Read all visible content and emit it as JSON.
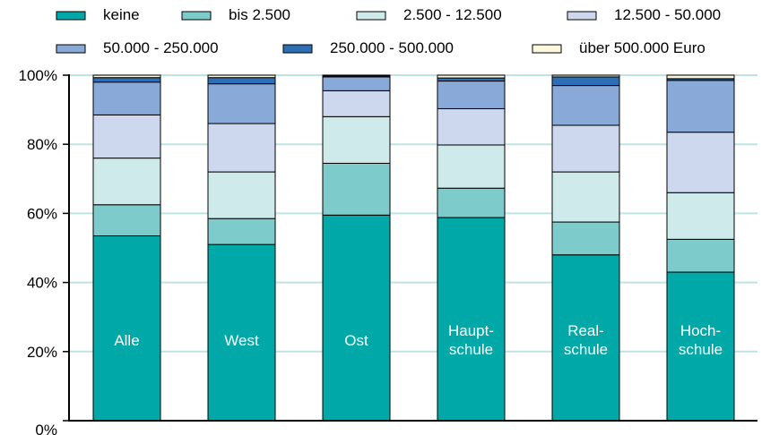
{
  "chart_data": {
    "type": "bar",
    "stacked": true,
    "categories": [
      [
        "Alle"
      ],
      [
        "West"
      ],
      [
        "Ost"
      ],
      [
        "Haupt-",
        "schule"
      ],
      [
        "Real-",
        "schule"
      ],
      [
        "Hoch-",
        "schule"
      ]
    ],
    "y_ticks": [
      "0%",
      "20%",
      "40%",
      "60%",
      "80%",
      "100%"
    ],
    "ylim": [
      0,
      100
    ],
    "grid": true,
    "legend_position": "top",
    "series": [
      {
        "name": "keine",
        "color": "#00a8a8",
        "values": [
          53.5,
          51.0,
          59.5,
          58.8,
          48.0,
          43.0
        ]
      },
      {
        "name": "bis 2.500",
        "color": "#7dcccb",
        "values": [
          9.0,
          7.5,
          15.0,
          8.5,
          9.5,
          9.5
        ]
      },
      {
        "name": "2.500 - 12.500",
        "color": "#cfeaea",
        "values": [
          13.5,
          13.5,
          13.5,
          12.5,
          14.5,
          13.5
        ]
      },
      {
        "name": "12.500 - 50.000",
        "color": "#cdd7ee",
        "values": [
          12.5,
          14.0,
          7.5,
          10.5,
          13.5,
          17.5
        ]
      },
      {
        "name": "50.000 - 250.000",
        "color": "#89a9d9",
        "values": [
          9.5,
          11.5,
          4.0,
          8.0,
          11.5,
          15.0
        ]
      },
      {
        "name": "250.000 - 500.000",
        "color": "#2d6fb6",
        "values": [
          1.3,
          1.8,
          0.3,
          0.9,
          2.5,
          0.5
        ]
      },
      {
        "name": "über 500.000 Euro",
        "color": "#fdf7dc",
        "values": [
          0.7,
          0.7,
          0.2,
          0.8,
          0.5,
          1.0
        ]
      }
    ]
  }
}
